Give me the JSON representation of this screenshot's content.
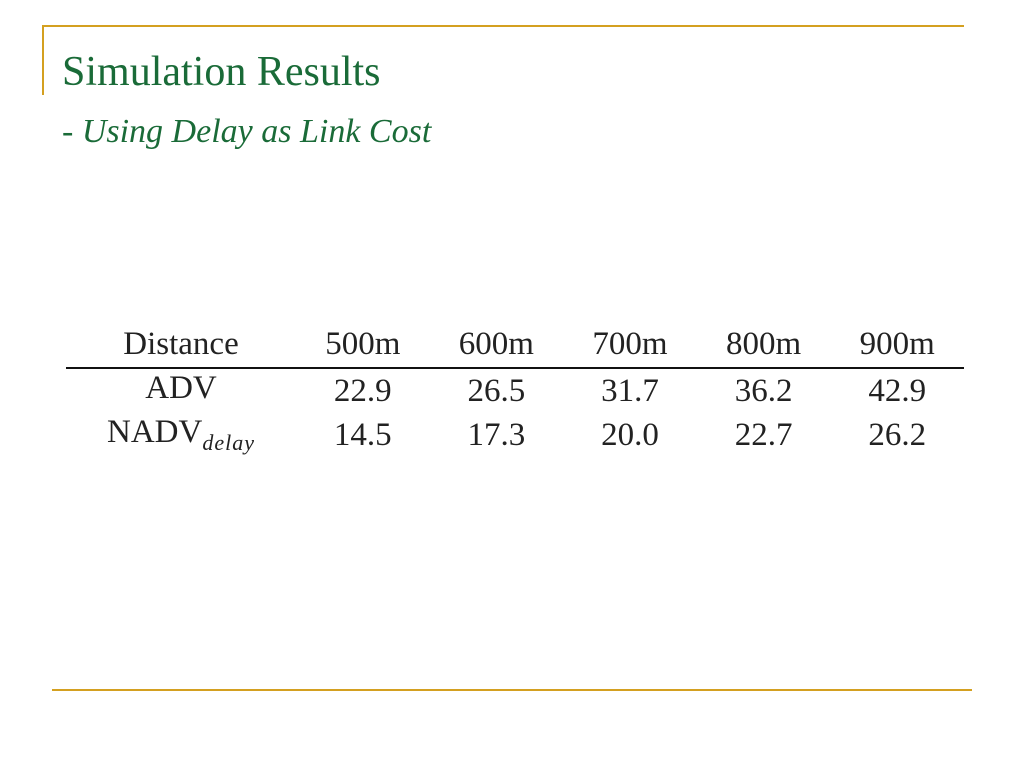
{
  "slide": {
    "title": "Simulation Results",
    "subtitle_dash": "- ",
    "subtitle": "Using Delay as Link Cost",
    "accent_color": "#d4a020",
    "title_color": "#1a6b38"
  },
  "table": {
    "header": {
      "label": "Distance",
      "columns": [
        "500m",
        "600m",
        "700m",
        "800m",
        "900m"
      ]
    },
    "rows": [
      {
        "label": "ADV",
        "label_sub": "",
        "values": [
          "22.9",
          "26.5",
          "31.7",
          "36.2",
          "42.9"
        ]
      },
      {
        "label": "NADV",
        "label_sub": "delay",
        "values": [
          "14.5",
          "17.3",
          "20.0",
          "22.7",
          "26.2"
        ]
      }
    ]
  }
}
